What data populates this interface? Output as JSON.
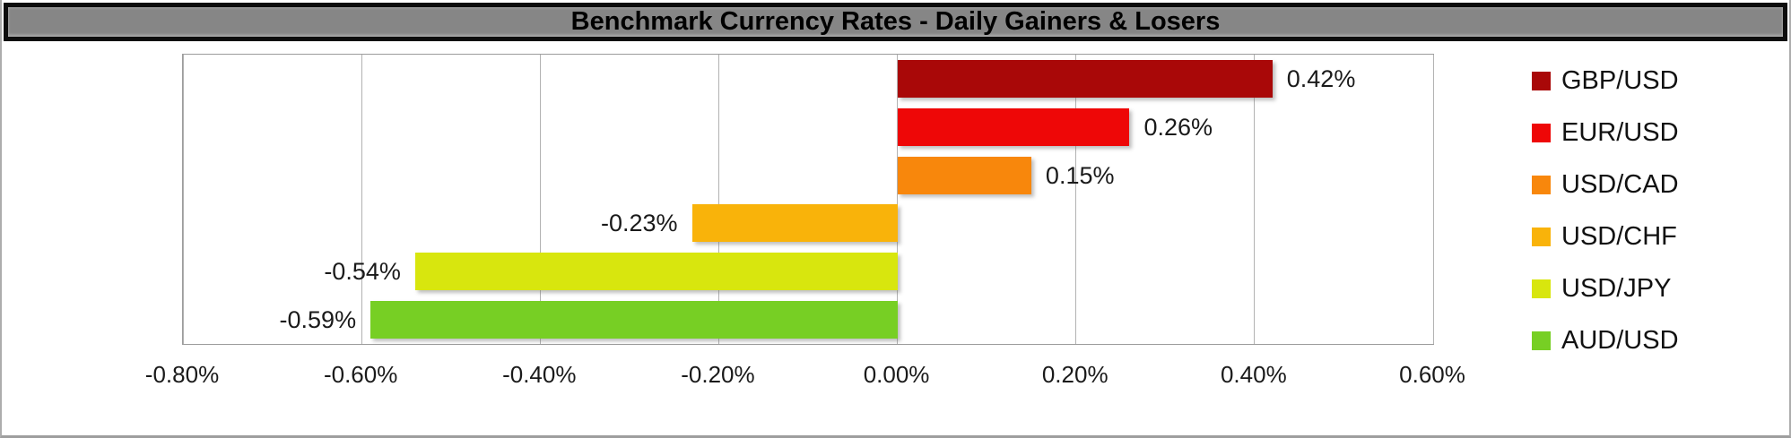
{
  "window": {
    "title_bar": {
      "text": "Benchmark Currency Rates - Daily Gainers & Losers",
      "bg_color": "#868686",
      "border_color": "#0d0d0d",
      "text_color": "#000000"
    }
  },
  "chart_data": {
    "type": "bar",
    "orientation": "horizontal",
    "title": "Benchmark Currency Rates - Daily Gainers & Losers",
    "categories": [
      "GBP/USD",
      "EUR/USD",
      "USD/CAD",
      "USD/CHF",
      "USD/JPY",
      "AUD/USD"
    ],
    "values": [
      0.42,
      0.26,
      0.15,
      -0.23,
      -0.54,
      -0.59
    ],
    "data_labels": [
      "0.42%",
      "0.26%",
      "0.15%",
      "-0.23%",
      "-0.54%",
      "-0.59%"
    ],
    "series_colors": [
      "#a90808",
      "#ee0707",
      "#f8870c",
      "#f9b30a",
      "#d8e60e",
      "#77cf24"
    ],
    "xlim": [
      -0.8,
      0.6
    ],
    "x_ticks": [
      {
        "value": -0.8,
        "label": "-0.80%"
      },
      {
        "value": -0.6,
        "label": "-0.60%"
      },
      {
        "value": -0.4,
        "label": "-0.40%"
      },
      {
        "value": -0.2,
        "label": "-0.20%"
      },
      {
        "value": 0.0,
        "label": "0.00%"
      },
      {
        "value": 0.2,
        "label": "0.20%"
      },
      {
        "value": 0.4,
        "label": "0.40%"
      },
      {
        "value": 0.6,
        "label": "0.60%"
      }
    ],
    "grid": true,
    "gridline_color": "#b2b2b2",
    "plot_border_color": "#9c9c9c",
    "legend_position": "right",
    "legend": [
      {
        "label": "GBP/USD",
        "color": "#a90808"
      },
      {
        "label": "EUR/USD",
        "color": "#ee0707"
      },
      {
        "label": "USD/CAD",
        "color": "#f8870c"
      },
      {
        "label": "USD/CHF",
        "color": "#f9b30a"
      },
      {
        "label": "USD/JPY",
        "color": "#d8e60e"
      },
      {
        "label": "AUD/USD",
        "color": "#77cf24"
      }
    ]
  }
}
